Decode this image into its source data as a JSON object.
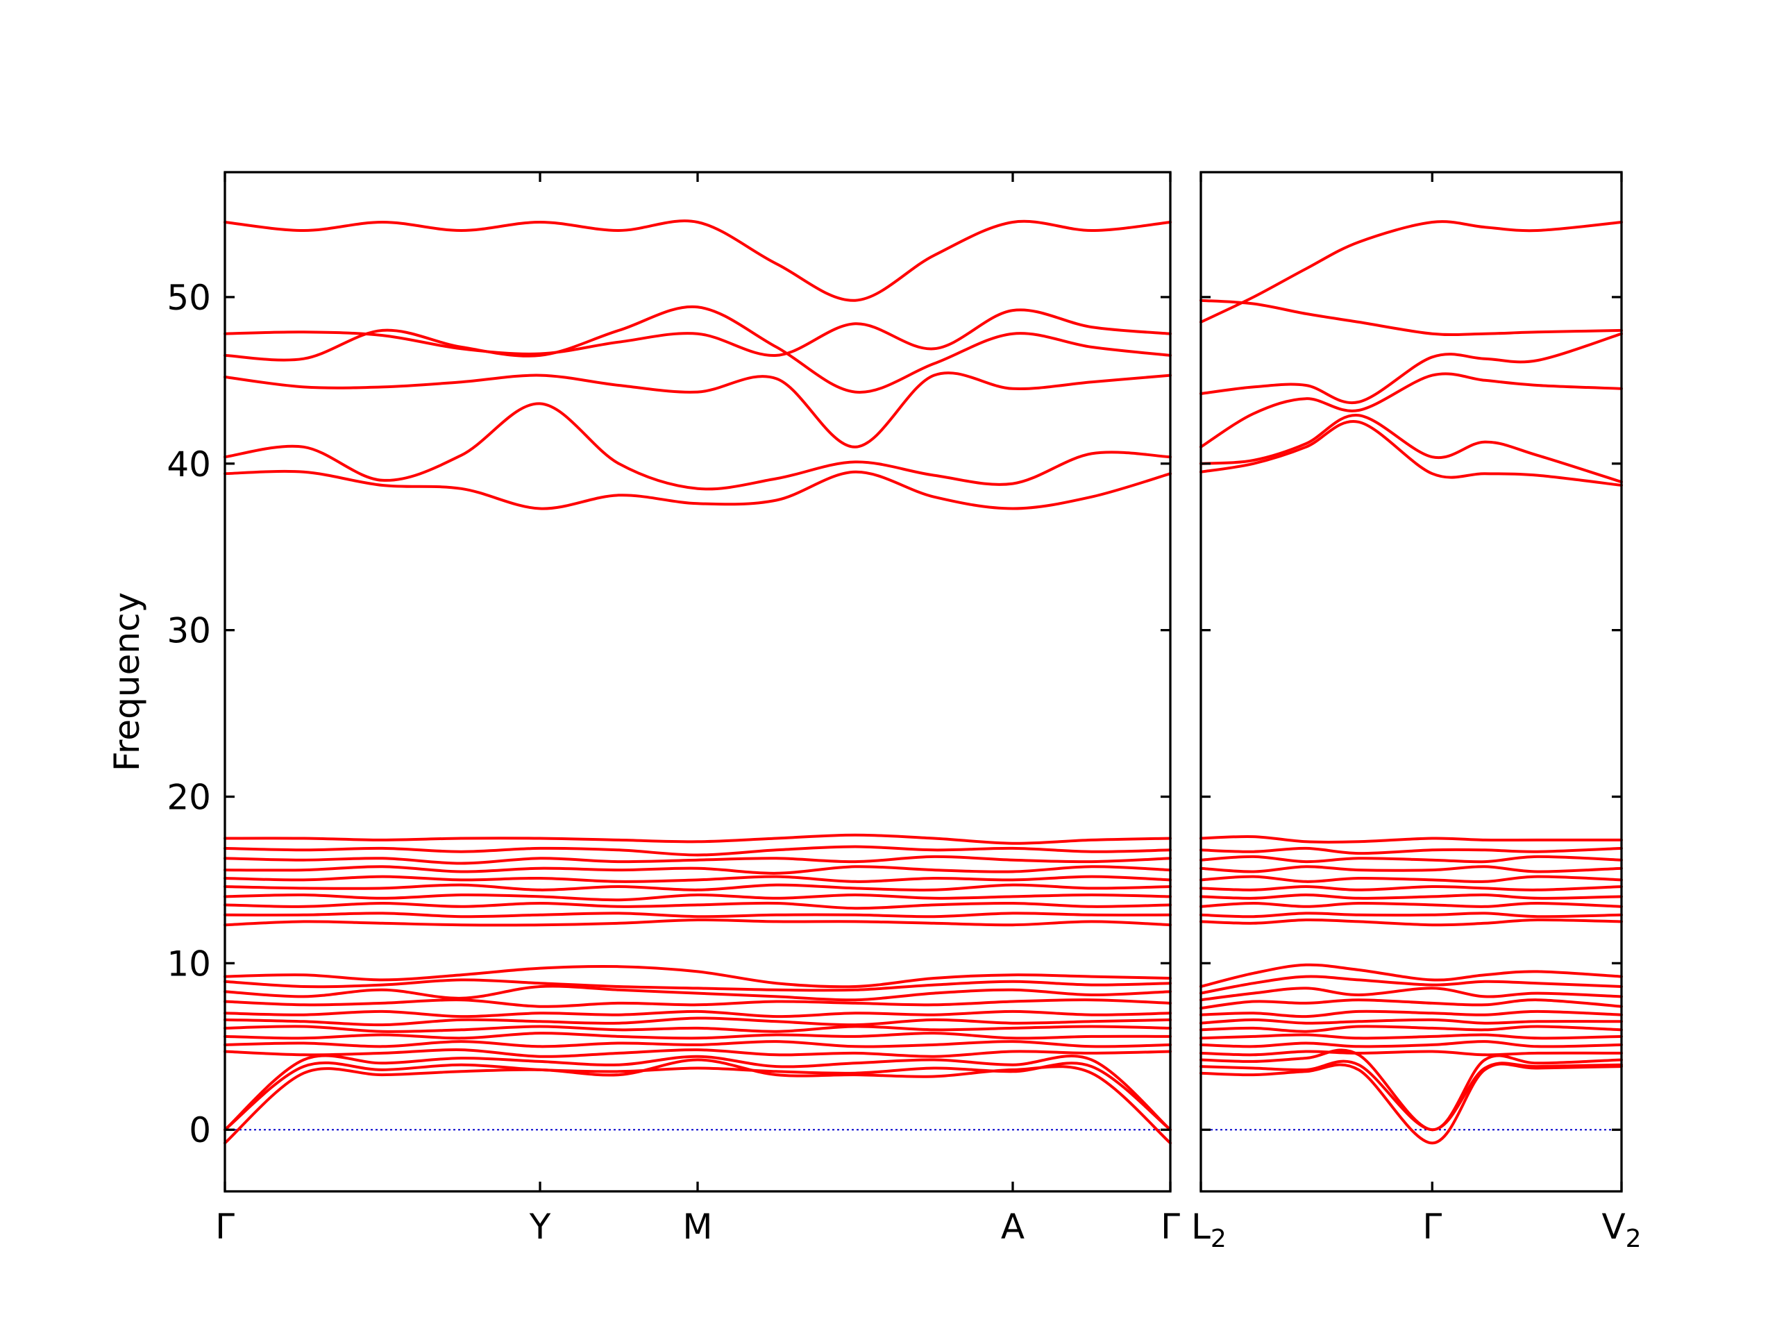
{
  "chart_data": {
    "type": "line",
    "ylabel": "Frequency",
    "xlabel": "",
    "title": "",
    "ylim": [
      -3.7,
      57.5
    ],
    "yticks": [
      0,
      10,
      20,
      30,
      40,
      50
    ],
    "line_color": "#ff0000",
    "zero_line_color": "#0000cc",
    "grid": false,
    "legend": "none",
    "panels": [
      {
        "name": "left",
        "x_range": [
          0,
          6
        ],
        "high_point_labels": [
          "Γ",
          "Y",
          "M",
          "A",
          "Γ"
        ],
        "high_point_positions": [
          0,
          2,
          3,
          5,
          6
        ],
        "band_samples_x": [
          0,
          0.5,
          1,
          1.5,
          2,
          2.5,
          3,
          3.5,
          4,
          4.5,
          5,
          5.5,
          6
        ],
        "bands": [
          {
            "y": [
              54.5,
              54.0,
              54.5,
              54.0,
              54.5,
              54.0,
              54.5,
              52.0,
              49.8,
              52.5,
              54.5,
              54.0,
              54.5
            ]
          },
          {
            "y": [
              47.8,
              47.9,
              47.7,
              46.9,
              46.6,
              47.3,
              47.8,
              46.5,
              48.4,
              46.9,
              49.2,
              48.2,
              47.8
            ]
          },
          {
            "y": [
              46.5,
              46.3,
              48.0,
              47.0,
              46.5,
              48.0,
              49.4,
              47.0,
              44.3,
              46.0,
              47.8,
              47.0,
              46.5
            ]
          },
          {
            "y": [
              45.2,
              44.6,
              44.6,
              44.9,
              45.3,
              44.7,
              44.3,
              45.1,
              41.0,
              45.3,
              44.5,
              44.9,
              45.3
            ]
          },
          {
            "y": [
              40.4,
              41.0,
              39.0,
              40.5,
              43.6,
              40.0,
              38.5,
              39.1,
              40.1,
              39.3,
              38.8,
              40.6,
              40.4
            ]
          },
          {
            "y": [
              39.4,
              39.5,
              38.7,
              38.5,
              37.3,
              38.1,
              37.6,
              37.8,
              39.5,
              38.0,
              37.3,
              38.0,
              39.4
            ]
          },
          {
            "y": [
              17.5,
              17.5,
              17.4,
              17.5,
              17.5,
              17.4,
              17.3,
              17.5,
              17.7,
              17.5,
              17.2,
              17.4,
              17.5
            ]
          },
          {
            "y": [
              16.9,
              16.8,
              16.9,
              16.7,
              16.9,
              16.8,
              16.5,
              16.8,
              17.0,
              16.8,
              16.9,
              16.7,
              16.8
            ]
          },
          {
            "y": [
              16.3,
              16.2,
              16.3,
              16.0,
              16.3,
              16.1,
              16.2,
              16.3,
              16.1,
              16.4,
              16.2,
              16.1,
              16.3
            ]
          },
          {
            "y": [
              15.6,
              15.6,
              15.8,
              15.5,
              15.7,
              15.6,
              15.7,
              15.4,
              15.8,
              15.6,
              15.5,
              15.8,
              15.6
            ]
          },
          {
            "y": [
              15.1,
              15.0,
              15.2,
              15.0,
              15.1,
              14.9,
              15.0,
              15.2,
              14.9,
              15.1,
              15.0,
              15.2,
              15.0
            ]
          },
          {
            "y": [
              14.6,
              14.5,
              14.5,
              14.7,
              14.4,
              14.6,
              14.4,
              14.7,
              14.5,
              14.4,
              14.7,
              14.5,
              14.6
            ]
          },
          {
            "y": [
              14.0,
              14.1,
              13.9,
              14.1,
              14.0,
              13.8,
              14.1,
              13.9,
              14.1,
              13.9,
              14.0,
              14.1,
              14.0
            ]
          },
          {
            "y": [
              13.5,
              13.4,
              13.6,
              13.4,
              13.6,
              13.4,
              13.5,
              13.6,
              13.3,
              13.5,
              13.6,
              13.4,
              13.5
            ]
          },
          {
            "y": [
              12.9,
              12.9,
              13.0,
              12.8,
              12.9,
              13.0,
              12.8,
              12.9,
              12.9,
              12.8,
              13.0,
              12.9,
              12.9
            ]
          },
          {
            "y": [
              12.3,
              12.5,
              12.4,
              12.3,
              12.3,
              12.4,
              12.6,
              12.5,
              12.5,
              12.4,
              12.3,
              12.5,
              12.3
            ]
          },
          {
            "y": [
              9.2,
              9.3,
              9.0,
              9.3,
              9.7,
              9.8,
              9.5,
              8.8,
              8.6,
              9.1,
              9.3,
              9.2,
              9.1
            ]
          },
          {
            "y": [
              8.9,
              8.6,
              8.7,
              9.0,
              8.8,
              8.6,
              8.5,
              8.4,
              8.4,
              8.7,
              8.9,
              8.7,
              8.8
            ]
          },
          {
            "y": [
              8.3,
              8.0,
              8.4,
              7.9,
              8.6,
              8.4,
              8.2,
              8.0,
              7.8,
              8.2,
              8.4,
              8.1,
              8.3
            ]
          },
          {
            "y": [
              7.7,
              7.5,
              7.6,
              7.8,
              7.4,
              7.6,
              7.5,
              7.7,
              7.6,
              7.5,
              7.7,
              7.8,
              7.6
            ]
          },
          {
            "y": [
              7.0,
              6.9,
              7.1,
              6.8,
              7.0,
              6.9,
              7.1,
              6.8,
              7.0,
              6.9,
              7.1,
              6.9,
              7.0
            ]
          },
          {
            "y": [
              6.6,
              6.5,
              6.3,
              6.6,
              6.5,
              6.4,
              6.7,
              6.5,
              6.3,
              6.6,
              6.4,
              6.5,
              6.6
            ]
          },
          {
            "y": [
              6.1,
              6.2,
              5.9,
              6.0,
              6.2,
              6.0,
              6.1,
              5.9,
              6.2,
              6.0,
              6.1,
              6.2,
              6.1
            ]
          },
          {
            "y": [
              5.6,
              5.5,
              5.7,
              5.5,
              5.8,
              5.6,
              5.5,
              5.7,
              5.6,
              5.8,
              5.5,
              5.6,
              5.6
            ]
          },
          {
            "y": [
              5.1,
              5.2,
              5.0,
              5.3,
              5.0,
              5.2,
              5.1,
              5.3,
              5.0,
              5.1,
              5.3,
              5.0,
              5.1
            ]
          },
          {
            "y": [
              4.7,
              4.5,
              4.6,
              4.8,
              4.4,
              4.6,
              4.8,
              4.5,
              4.6,
              4.4,
              4.7,
              4.6,
              4.7
            ]
          },
          {
            "y": [
              0.0,
              4.2,
              4.0,
              4.3,
              4.1,
              3.9,
              4.4,
              3.8,
              4.0,
              4.2,
              3.9,
              4.2,
              0.0
            ]
          },
          {
            "y": [
              0.0,
              3.8,
              3.6,
              3.9,
              3.6,
              3.5,
              3.7,
              3.5,
              3.4,
              3.7,
              3.5,
              3.8,
              0.0
            ]
          },
          {
            "y": [
              -0.8,
              3.4,
              3.3,
              3.5,
              3.6,
              3.3,
              4.2,
              3.3,
              3.3,
              3.2,
              3.6,
              3.4,
              -0.8
            ]
          }
        ]
      },
      {
        "name": "right",
        "x_range": [
          0,
          2
        ],
        "high_point_labels": [
          "L",
          "Γ",
          "V"
        ],
        "high_point_subscripts": [
          "2",
          "",
          "2"
        ],
        "high_point_positions": [
          0,
          1.1,
          2
        ],
        "band_samples_x": [
          0,
          0.25,
          0.5,
          0.75,
          1.1,
          1.35,
          1.6,
          2.0
        ],
        "bands": [
          {
            "y": [
              48.5,
              50.0,
              51.7,
              53.3,
              54.5,
              54.2,
              54.0,
              54.5
            ]
          },
          {
            "y": [
              49.8,
              49.6,
              49.0,
              48.5,
              47.8,
              47.8,
              47.9,
              48.0
            ]
          },
          {
            "y": [
              44.2,
              44.6,
              44.7,
              43.7,
              46.4,
              46.3,
              46.2,
              47.8
            ]
          },
          {
            "y": [
              41.0,
              43.0,
              43.9,
              43.2,
              45.3,
              45.0,
              44.7,
              44.5
            ]
          },
          {
            "y": [
              40.0,
              40.2,
              41.2,
              42.9,
              40.4,
              41.3,
              40.5,
              38.9
            ]
          },
          {
            "y": [
              39.5,
              40.0,
              41.0,
              42.5,
              39.4,
              39.4,
              39.3,
              38.7
            ]
          },
          {
            "y": [
              17.5,
              17.6,
              17.3,
              17.3,
              17.5,
              17.4,
              17.4,
              17.4
            ]
          },
          {
            "y": [
              16.8,
              16.7,
              16.9,
              16.6,
              16.8,
              16.8,
              16.7,
              16.9
            ]
          },
          {
            "y": [
              16.2,
              16.4,
              16.1,
              16.3,
              16.2,
              16.1,
              16.4,
              16.2
            ]
          },
          {
            "y": [
              15.7,
              15.5,
              15.8,
              15.6,
              15.6,
              15.8,
              15.5,
              15.7
            ]
          },
          {
            "y": [
              15.0,
              15.2,
              14.9,
              15.1,
              15.0,
              14.9,
              15.2,
              15.0
            ]
          },
          {
            "y": [
              14.5,
              14.4,
              14.6,
              14.4,
              14.6,
              14.5,
              14.4,
              14.6
            ]
          },
          {
            "y": [
              14.0,
              13.9,
              14.1,
              13.9,
              14.0,
              14.1,
              13.9,
              14.0
            ]
          },
          {
            "y": [
              13.4,
              13.6,
              13.4,
              13.6,
              13.5,
              13.4,
              13.6,
              13.4
            ]
          },
          {
            "y": [
              12.9,
              12.8,
              13.0,
              12.9,
              12.9,
              13.0,
              12.8,
              12.9
            ]
          },
          {
            "y": [
              12.5,
              12.4,
              12.6,
              12.5,
              12.3,
              12.4,
              12.6,
              12.5
            ]
          },
          {
            "y": [
              8.6,
              9.4,
              9.9,
              9.6,
              9.0,
              9.3,
              9.5,
              9.2
            ]
          },
          {
            "y": [
              8.2,
              8.8,
              9.2,
              9.0,
              8.7,
              8.9,
              8.8,
              8.6
            ]
          },
          {
            "y": [
              7.8,
              8.2,
              8.5,
              8.1,
              8.5,
              8.0,
              8.2,
              8.0
            ]
          },
          {
            "y": [
              7.3,
              7.7,
              7.6,
              7.8,
              7.6,
              7.5,
              7.8,
              7.4
            ]
          },
          {
            "y": [
              6.9,
              7.0,
              6.8,
              7.1,
              7.0,
              6.9,
              7.1,
              6.9
            ]
          },
          {
            "y": [
              6.4,
              6.6,
              6.4,
              6.5,
              6.6,
              6.4,
              6.5,
              6.5
            ]
          },
          {
            "y": [
              6.0,
              6.1,
              5.9,
              6.2,
              6.1,
              6.0,
              6.2,
              6.0
            ]
          },
          {
            "y": [
              5.5,
              5.6,
              5.7,
              5.5,
              5.6,
              5.7,
              5.5,
              5.6
            ]
          },
          {
            "y": [
              5.1,
              5.0,
              5.2,
              5.0,
              5.1,
              5.3,
              5.0,
              5.1
            ]
          },
          {
            "y": [
              4.6,
              4.5,
              4.7,
              4.6,
              4.7,
              4.5,
              4.6,
              4.6
            ]
          },
          {
            "y": [
              4.2,
              4.1,
              4.3,
              4.5,
              0.0,
              4.2,
              4.0,
              4.2
            ]
          },
          {
            "y": [
              3.8,
              3.7,
              3.6,
              3.9,
              0.0,
              3.7,
              3.8,
              3.9
            ]
          },
          {
            "y": [
              3.4,
              3.3,
              3.5,
              3.6,
              -0.8,
              3.6,
              3.7,
              3.8
            ]
          }
        ]
      }
    ]
  }
}
